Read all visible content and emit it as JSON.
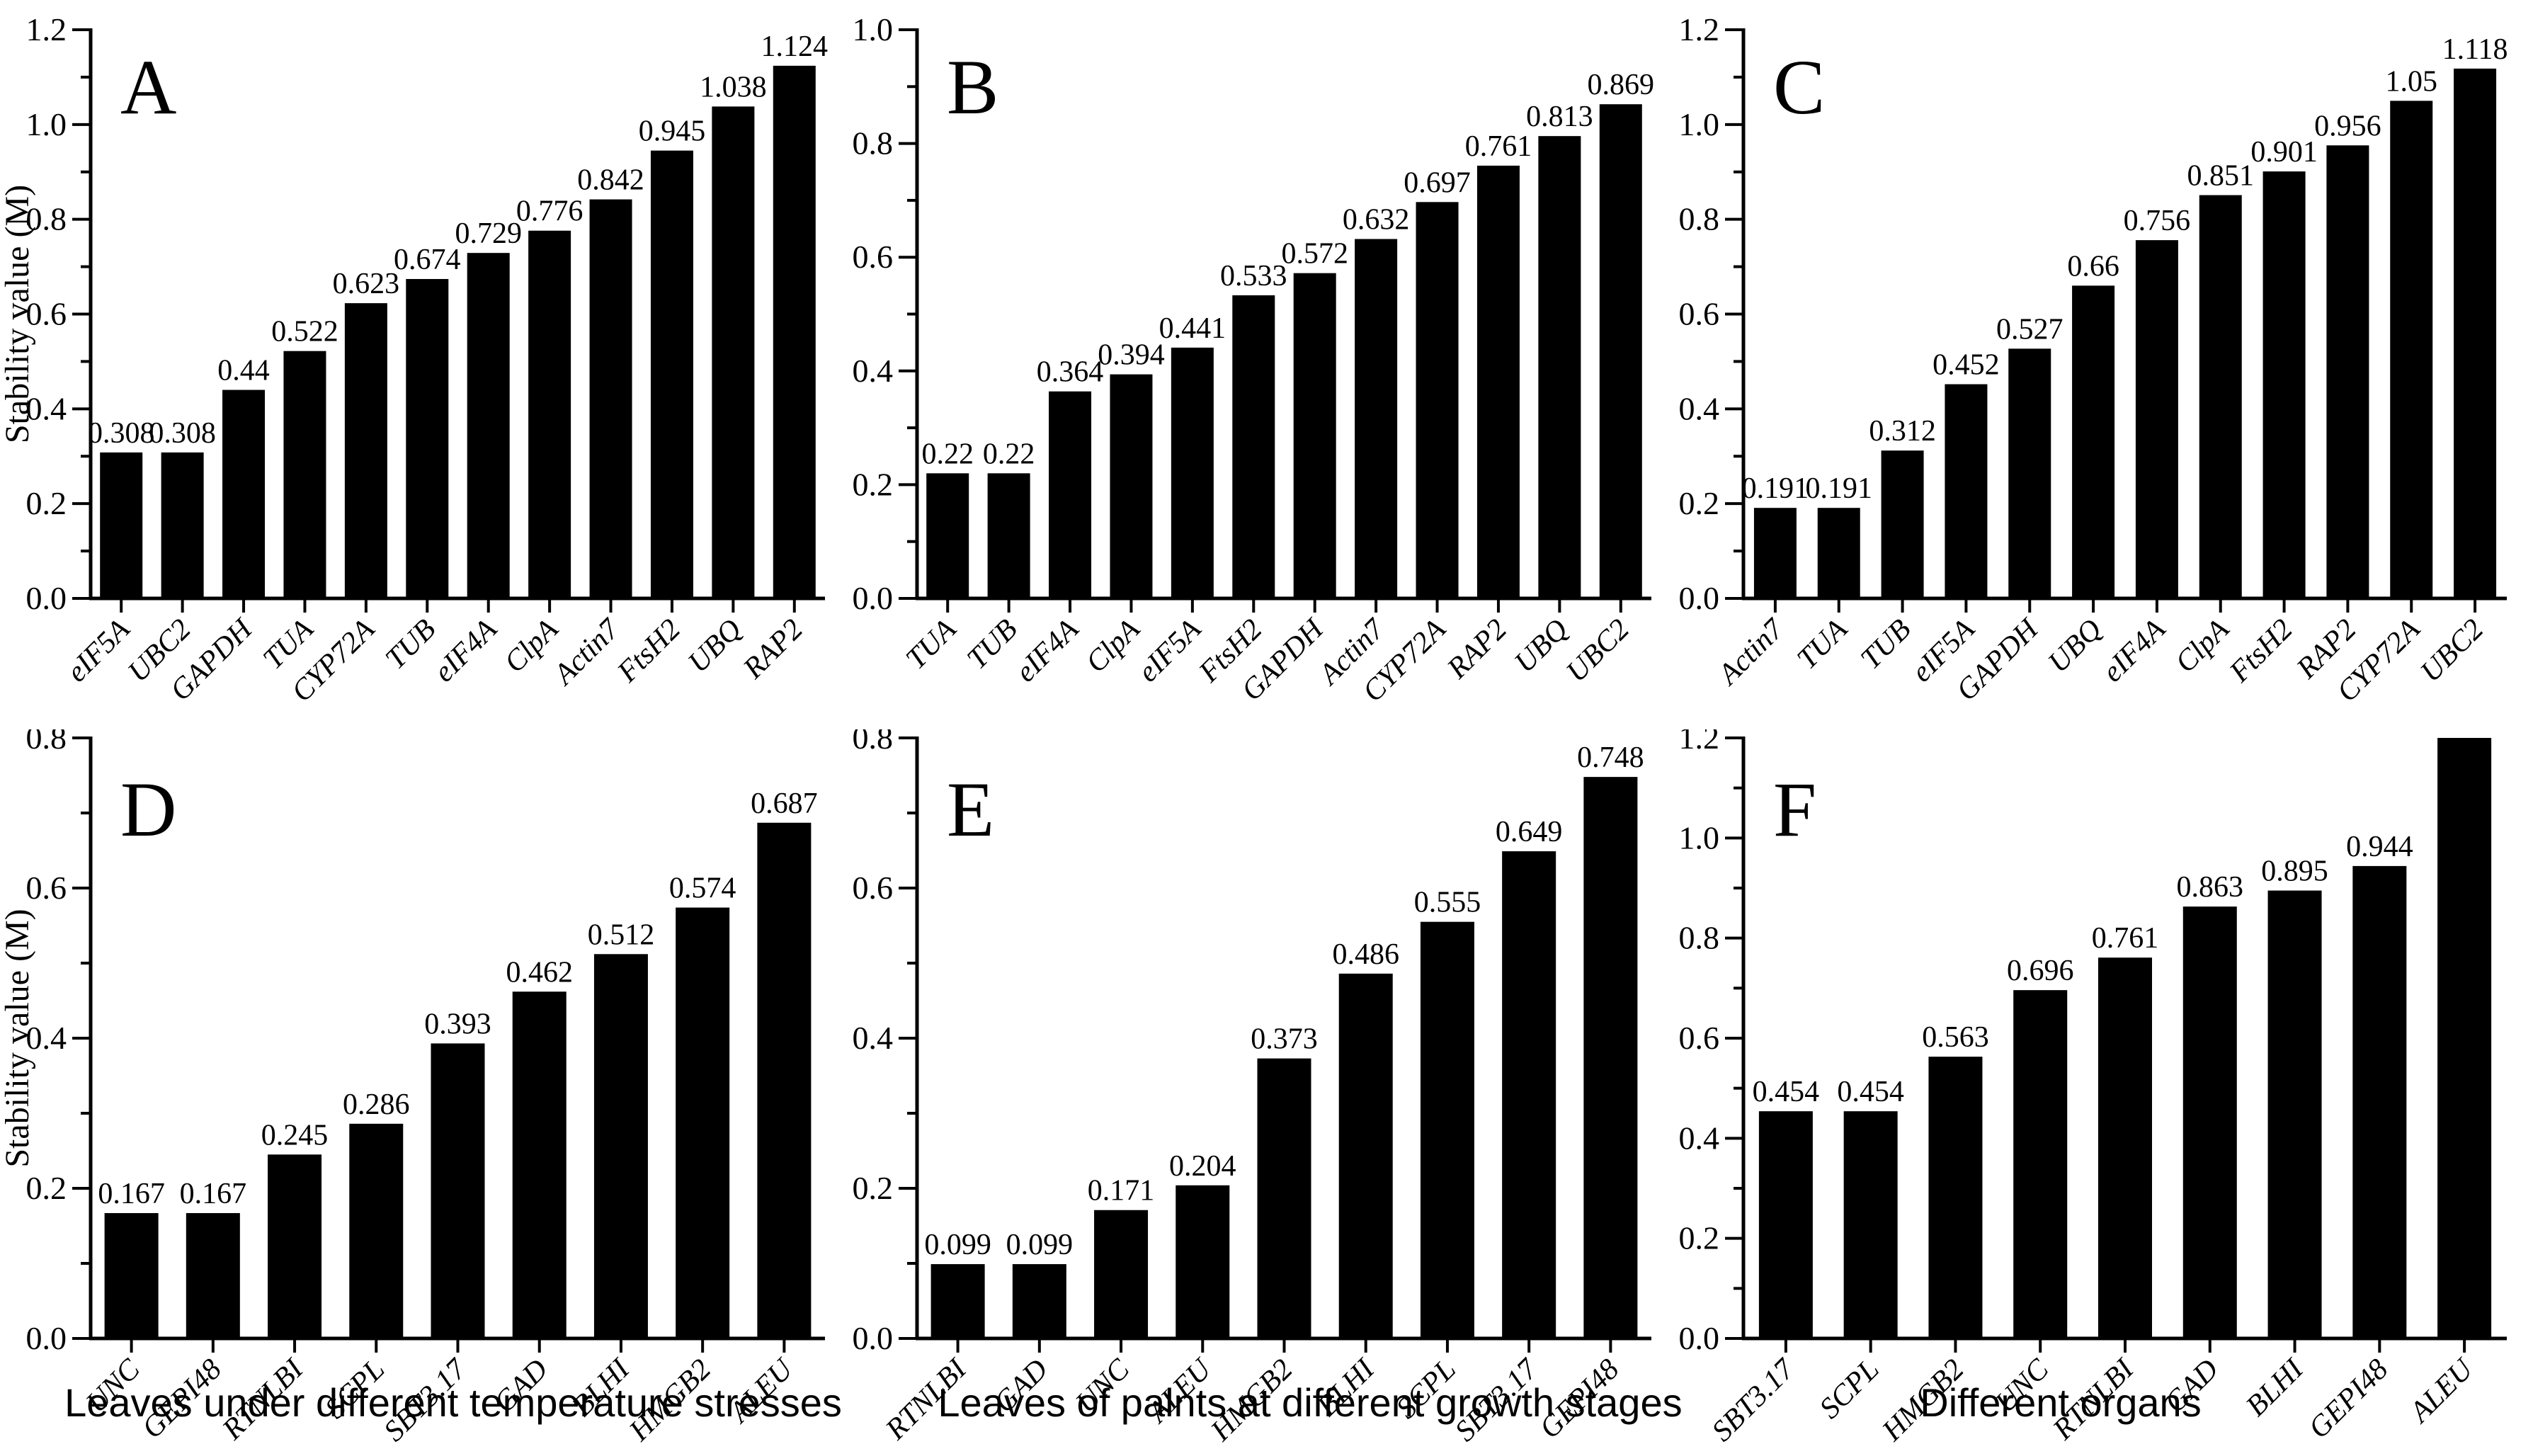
{
  "figure": {
    "background": "#ffffff",
    "bar_color": "#000000",
    "axis_color": "#000000",
    "text_color": "#000000",
    "captions": [
      {
        "text": "Leaves under different temperature stresses"
      },
      {
        "text": "Leaves of palnts at different growth stages"
      },
      {
        "text": "Different organs"
      }
    ]
  },
  "chart_data": [
    {
      "type": "bar",
      "panel_letter": "A",
      "ylabel": "Stability value (M)",
      "xlabel": "",
      "ylim": [
        0,
        1.2
      ],
      "ytick_step": 0.2,
      "minor_tick_step": 0.1,
      "grid": false,
      "legend": "none",
      "categories": [
        "eIF5A",
        "UBC2",
        "GAPDH",
        "TUA",
        "CYP72A",
        "TUB",
        "eIF4A",
        "ClpA",
        "Actin7",
        "FtsH2",
        "UBQ",
        "RAP2"
      ],
      "values": [
        0.308,
        0.308,
        0.44,
        0.522,
        0.623,
        0.674,
        0.729,
        0.776,
        0.842,
        0.945,
        1.038,
        1.124
      ]
    },
    {
      "type": "bar",
      "panel_letter": "B",
      "ylabel": "",
      "xlabel": "",
      "ylim": [
        0,
        1.0
      ],
      "ytick_step": 0.2,
      "minor_tick_step": 0.1,
      "grid": false,
      "legend": "none",
      "categories": [
        "TUA",
        "TUB",
        "eIF4A",
        "ClpA",
        "eIF5A",
        "FtsH2",
        "GAPDH",
        "Actin7",
        "CYP72A",
        "RAP2",
        "UBQ",
        "UBC2"
      ],
      "values": [
        0.22,
        0.22,
        0.364,
        0.394,
        0.441,
        0.533,
        0.572,
        0.632,
        0.697,
        0.761,
        0.813,
        0.869
      ]
    },
    {
      "type": "bar",
      "panel_letter": "C",
      "ylabel": "",
      "xlabel": "",
      "ylim": [
        0,
        1.2
      ],
      "ytick_step": 0.2,
      "minor_tick_step": 0.1,
      "grid": false,
      "legend": "none",
      "categories": [
        "Actin7",
        "TUA",
        "TUB",
        "eIF5A",
        "GAPDH",
        "UBQ",
        "eIF4A",
        "ClpA",
        "FtsH2",
        "RAP2",
        "CYP72A",
        "UBC2"
      ],
      "values": [
        0.191,
        0.191,
        0.312,
        0.452,
        0.527,
        0.66,
        0.756,
        0.851,
        0.901,
        0.956,
        1.05,
        1.118
      ]
    },
    {
      "type": "bar",
      "panel_letter": "D",
      "ylabel": "Stability value (M)",
      "xlabel": "Leaves under different temperature stresses",
      "ylim": [
        0,
        0.8
      ],
      "ytick_step": 0.2,
      "minor_tick_step": 0.1,
      "grid": false,
      "legend": "none",
      "categories": [
        "UNC",
        "GEPI48",
        "RTNLBI",
        "SCPL",
        "SBT3.17",
        "GAD",
        "BLHI",
        "HMGB2",
        "ALEU"
      ],
      "values": [
        0.167,
        0.167,
        0.245,
        0.286,
        0.393,
        0.462,
        0.512,
        0.574,
        0.687
      ]
    },
    {
      "type": "bar",
      "panel_letter": "E",
      "ylabel": "",
      "xlabel": "Leaves of palnts at different growth stages",
      "ylim": [
        0,
        0.8
      ],
      "ytick_step": 0.2,
      "minor_tick_step": 0.1,
      "grid": false,
      "legend": "none",
      "categories": [
        "RTNLBI",
        "GAD",
        "UNC",
        "ALEU",
        "HMGB2",
        "BLHI",
        "SCPL",
        "SBT3.17",
        "GEPI48"
      ],
      "values": [
        0.099,
        0.099,
        0.171,
        0.204,
        0.373,
        0.486,
        0.555,
        0.649,
        0.748
      ]
    },
    {
      "type": "bar",
      "panel_letter": "F",
      "ylabel": "",
      "xlabel": "Different organs",
      "ylim": [
        0,
        1.2
      ],
      "ytick_step": 0.2,
      "minor_tick_step": 0.1,
      "grid": false,
      "legend": "none",
      "categories": [
        "SBT3.17",
        "SCPL",
        "HMGB2",
        "UNC",
        "RTNLBI",
        "GAD",
        "BLHI",
        "GEPI48",
        "ALEU"
      ],
      "values": [
        0.454,
        0.454,
        0.563,
        0.696,
        0.761,
        0.863,
        0.895,
        0.944,
        1.2
      ]
    }
  ]
}
